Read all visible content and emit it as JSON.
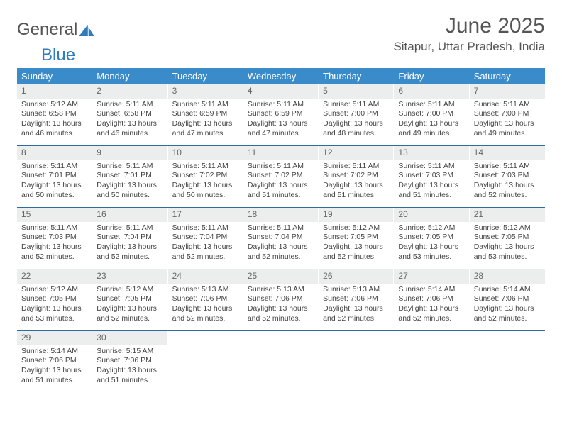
{
  "logo": {
    "part1": "General",
    "part2": "Blue"
  },
  "title": "June 2025",
  "location": "Sitapur, Uttar Pradesh, India",
  "colors": {
    "header_bg": "#3a8bc9",
    "header_text": "#ffffff",
    "daynum_bg": "#eceded",
    "row_border": "#2a6ca3",
    "text": "#444444",
    "logo_gray": "#555555",
    "logo_blue": "#2f7bbf"
  },
  "weekdays": [
    "Sunday",
    "Monday",
    "Tuesday",
    "Wednesday",
    "Thursday",
    "Friday",
    "Saturday"
  ],
  "days": [
    {
      "n": 1,
      "sr": "5:12 AM",
      "ss": "6:58 PM",
      "dl": "13 hours and 46 minutes."
    },
    {
      "n": 2,
      "sr": "5:11 AM",
      "ss": "6:58 PM",
      "dl": "13 hours and 46 minutes."
    },
    {
      "n": 3,
      "sr": "5:11 AM",
      "ss": "6:59 PM",
      "dl": "13 hours and 47 minutes."
    },
    {
      "n": 4,
      "sr": "5:11 AM",
      "ss": "6:59 PM",
      "dl": "13 hours and 47 minutes."
    },
    {
      "n": 5,
      "sr": "5:11 AM",
      "ss": "7:00 PM",
      "dl": "13 hours and 48 minutes."
    },
    {
      "n": 6,
      "sr": "5:11 AM",
      "ss": "7:00 PM",
      "dl": "13 hours and 49 minutes."
    },
    {
      "n": 7,
      "sr": "5:11 AM",
      "ss": "7:00 PM",
      "dl": "13 hours and 49 minutes."
    },
    {
      "n": 8,
      "sr": "5:11 AM",
      "ss": "7:01 PM",
      "dl": "13 hours and 50 minutes."
    },
    {
      "n": 9,
      "sr": "5:11 AM",
      "ss": "7:01 PM",
      "dl": "13 hours and 50 minutes."
    },
    {
      "n": 10,
      "sr": "5:11 AM",
      "ss": "7:02 PM",
      "dl": "13 hours and 50 minutes."
    },
    {
      "n": 11,
      "sr": "5:11 AM",
      "ss": "7:02 PM",
      "dl": "13 hours and 51 minutes."
    },
    {
      "n": 12,
      "sr": "5:11 AM",
      "ss": "7:02 PM",
      "dl": "13 hours and 51 minutes."
    },
    {
      "n": 13,
      "sr": "5:11 AM",
      "ss": "7:03 PM",
      "dl": "13 hours and 51 minutes."
    },
    {
      "n": 14,
      "sr": "5:11 AM",
      "ss": "7:03 PM",
      "dl": "13 hours and 52 minutes."
    },
    {
      "n": 15,
      "sr": "5:11 AM",
      "ss": "7:03 PM",
      "dl": "13 hours and 52 minutes."
    },
    {
      "n": 16,
      "sr": "5:11 AM",
      "ss": "7:04 PM",
      "dl": "13 hours and 52 minutes."
    },
    {
      "n": 17,
      "sr": "5:11 AM",
      "ss": "7:04 PM",
      "dl": "13 hours and 52 minutes."
    },
    {
      "n": 18,
      "sr": "5:11 AM",
      "ss": "7:04 PM",
      "dl": "13 hours and 52 minutes."
    },
    {
      "n": 19,
      "sr": "5:12 AM",
      "ss": "7:05 PM",
      "dl": "13 hours and 52 minutes."
    },
    {
      "n": 20,
      "sr": "5:12 AM",
      "ss": "7:05 PM",
      "dl": "13 hours and 53 minutes."
    },
    {
      "n": 21,
      "sr": "5:12 AM",
      "ss": "7:05 PM",
      "dl": "13 hours and 53 minutes."
    },
    {
      "n": 22,
      "sr": "5:12 AM",
      "ss": "7:05 PM",
      "dl": "13 hours and 53 minutes."
    },
    {
      "n": 23,
      "sr": "5:12 AM",
      "ss": "7:05 PM",
      "dl": "13 hours and 52 minutes."
    },
    {
      "n": 24,
      "sr": "5:13 AM",
      "ss": "7:06 PM",
      "dl": "13 hours and 52 minutes."
    },
    {
      "n": 25,
      "sr": "5:13 AM",
      "ss": "7:06 PM",
      "dl": "13 hours and 52 minutes."
    },
    {
      "n": 26,
      "sr": "5:13 AM",
      "ss": "7:06 PM",
      "dl": "13 hours and 52 minutes."
    },
    {
      "n": 27,
      "sr": "5:14 AM",
      "ss": "7:06 PM",
      "dl": "13 hours and 52 minutes."
    },
    {
      "n": 28,
      "sr": "5:14 AM",
      "ss": "7:06 PM",
      "dl": "13 hours and 52 minutes."
    },
    {
      "n": 29,
      "sr": "5:14 AM",
      "ss": "7:06 PM",
      "dl": "13 hours and 51 minutes."
    },
    {
      "n": 30,
      "sr": "5:15 AM",
      "ss": "7:06 PM",
      "dl": "13 hours and 51 minutes."
    }
  ],
  "labels": {
    "sunrise": "Sunrise:",
    "sunset": "Sunset:",
    "daylight": "Daylight:"
  },
  "layout": {
    "first_weekday_index": 0,
    "columns": 7
  }
}
